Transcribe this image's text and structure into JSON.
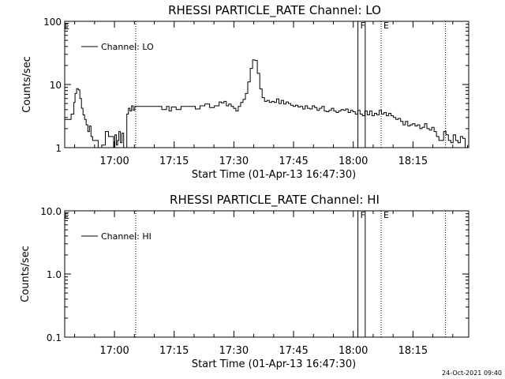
{
  "footer_timestamp": "24-Oct-2021 09:40",
  "chart_data": [
    {
      "type": "line",
      "title": "RHESSI PARTICLE_RATE Channel: LO",
      "xlabel": "Start Time (01-Apr-13 16:47:30)",
      "ylabel": "Counts/sec",
      "yscale": "log",
      "ylim": [
        1,
        100
      ],
      "y_ticks": [
        1,
        10,
        100
      ],
      "y_tick_labels": [
        "1",
        "10",
        "100"
      ],
      "xlim": [
        "16:47:30",
        "18:29:00"
      ],
      "x_ticks": [
        "17:00",
        "17:15",
        "17:30",
        "17:45",
        "18:00",
        "18:15"
      ],
      "legend": {
        "position": "top-left",
        "entries": [
          "Channel: LO"
        ]
      },
      "markers": [
        {
          "type": "dotted",
          "time": "17:05:20"
        },
        {
          "type": "solid",
          "time": "18:01:10",
          "label": "F"
        },
        {
          "type": "solid",
          "time": "18:03:00",
          "label": ""
        },
        {
          "type": "dotted",
          "time": "18:07:00",
          "label": "E"
        },
        {
          "type": "dotted",
          "time": "18:23:10"
        }
      ],
      "corner_label": "E",
      "series": [
        {
          "name": "Channel: LO",
          "time_min": [
            0.0,
            1.5,
            1.6,
            2.3,
            2.6,
            3.0,
            3.4,
            3.8,
            4.2,
            4.6,
            5.0,
            5.4,
            5.8,
            6.2,
            6.6,
            7.0,
            7.6,
            8.4,
            9.3,
            10.2,
            11.0,
            11.8,
            12.3,
            12.6,
            13.0,
            13.3,
            13.6,
            14.0,
            14.4,
            14.8,
            15.2,
            15.6,
            16.0,
            16.4,
            16.8,
            17.2,
            17.6,
            18.0,
            18.4,
            18.8,
            19.2,
            19.6,
            20.0,
            21.0,
            22.0,
            22.6,
            23.2,
            24.4,
            25.6,
            26.2,
            26.8,
            28.0,
            29.2,
            30.4,
            31.6,
            32.8,
            34.0,
            35.2,
            36.4,
            37.6,
            38.8,
            39.4,
            40.0,
            40.6,
            41.2,
            41.8,
            42.4,
            43.0,
            43.6,
            44.2,
            44.8,
            45.4,
            46.0,
            46.6,
            47.2,
            47.8,
            48.4,
            49.0,
            49.6,
            50.2,
            50.8,
            51.4,
            52.0,
            52.6,
            53.2,
            53.8,
            54.4,
            55.0,
            55.6,
            56.2,
            56.8,
            57.4,
            58.0,
            58.6,
            59.2,
            59.8,
            60.4,
            61.0,
            61.6,
            62.2,
            62.8,
            63.4,
            64.0,
            64.6,
            65.2,
            65.8,
            66.4,
            67.0,
            67.6,
            68.2,
            68.8,
            69.4,
            70.0,
            70.6,
            71.2,
            71.8,
            72.4,
            73.0,
            73.6,
            74.2,
            74.8,
            75.4,
            76.0,
            76.6,
            77.2,
            77.8,
            78.4,
            79.0,
            79.6,
            80.2,
            80.8,
            81.4,
            82.0,
            82.6,
            83.2,
            83.8,
            84.4,
            85.0,
            85.6,
            86.2,
            86.8,
            87.4,
            88.0,
            88.6,
            89.2,
            89.8,
            90.4,
            91.0,
            91.6,
            92.2,
            92.8,
            93.4,
            94.0,
            94.6,
            95.2,
            95.8,
            96.4,
            97.0,
            97.6,
            98.2,
            98.8,
            99.4,
            100.0,
            100.6,
            101.2
          ],
          "values": [
            2.8,
            2.8,
            3.4,
            5.2,
            7.2,
            8.6,
            8.2,
            6.0,
            4.2,
            3.3,
            2.8,
            2.3,
            1.8,
            2.2,
            1.5,
            1.3,
            1.3,
            1.0,
            1.1,
            1.8,
            1.5,
            1.5,
            1.0,
            1.6,
            1.1,
            1.3,
            1.8,
            1.2,
            1.7,
            0.9,
            1.0,
            3.4,
            4.2,
            3.8,
            4.6,
            3.9,
            4.5,
            4.5,
            4.5,
            4.5,
            4.5,
            4.5,
            4.5,
            4.5,
            4.5,
            4.5,
            4.5,
            4.0,
            4.5,
            3.8,
            4.4,
            4.0,
            4.5,
            4.5,
            4.5,
            4.1,
            4.6,
            4.9,
            4.3,
            4.6,
            5.3,
            5.1,
            5.4,
            4.6,
            4.9,
            4.5,
            4.2,
            3.8,
            4.5,
            5.2,
            5.8,
            7.2,
            11.0,
            18.0,
            24.5,
            24.0,
            15.0,
            8.5,
            6.2,
            5.4,
            5.6,
            5.2,
            5.4,
            5.2,
            5.9,
            5.0,
            5.6,
            4.9,
            5.3,
            5.0,
            4.7,
            4.5,
            4.7,
            4.4,
            4.5,
            4.1,
            4.6,
            4.2,
            4.1,
            4.6,
            4.3,
            3.9,
            4.2,
            4.5,
            3.8,
            3.7,
            3.9,
            4.2,
            3.8,
            3.6,
            3.8,
            4.0,
            3.9,
            4.1,
            3.6,
            3.9,
            3.7,
            3.4,
            3.9,
            3.4,
            3.2,
            3.8,
            3.3,
            3.8,
            3.2,
            3.5,
            3.3,
            3.9,
            3.4,
            3.6,
            3.2,
            3.5,
            3.2,
            3.0,
            2.8,
            2.9,
            2.6,
            2.3,
            2.6,
            2.2,
            2.3,
            2.4,
            2.2,
            2.3,
            2.0,
            2.1,
            2.4,
            2.0,
            1.9,
            2.1,
            1.8,
            1.5,
            1.3,
            1.3,
            1.8,
            1.6,
            1.3,
            1.2,
            1.6,
            1.3,
            1.2,
            1.5,
            1.4,
            1.0,
            1.1
          ]
        }
      ]
    },
    {
      "type": "line",
      "title": "RHESSI PARTICLE_RATE Channel: HI",
      "xlabel": "Start Time (01-Apr-13 16:47:30)",
      "ylabel": "Counts/sec",
      "yscale": "log",
      "ylim": [
        0.1,
        10
      ],
      "y_ticks": [
        0.1,
        1,
        10
      ],
      "y_tick_labels": [
        "0.1",
        "1.0",
        "10.0"
      ],
      "xlim": [
        "16:47:30",
        "18:29:00"
      ],
      "x_ticks": [
        "17:00",
        "17:15",
        "17:30",
        "17:45",
        "18:00",
        "18:15"
      ],
      "legend": {
        "position": "top-left",
        "entries": [
          "Channel: HI"
        ]
      },
      "markers": [
        {
          "type": "dotted",
          "time": "17:05:20"
        },
        {
          "type": "solid",
          "time": "18:01:10",
          "label": "F"
        },
        {
          "type": "solid",
          "time": "18:03:00",
          "label": ""
        },
        {
          "type": "dotted",
          "time": "18:07:00",
          "label": "E"
        },
        {
          "type": "dotted",
          "time": "18:23:10"
        }
      ],
      "corner_label": "E",
      "series": [
        {
          "name": "Channel: HI",
          "time_min": [],
          "values": []
        }
      ]
    }
  ]
}
